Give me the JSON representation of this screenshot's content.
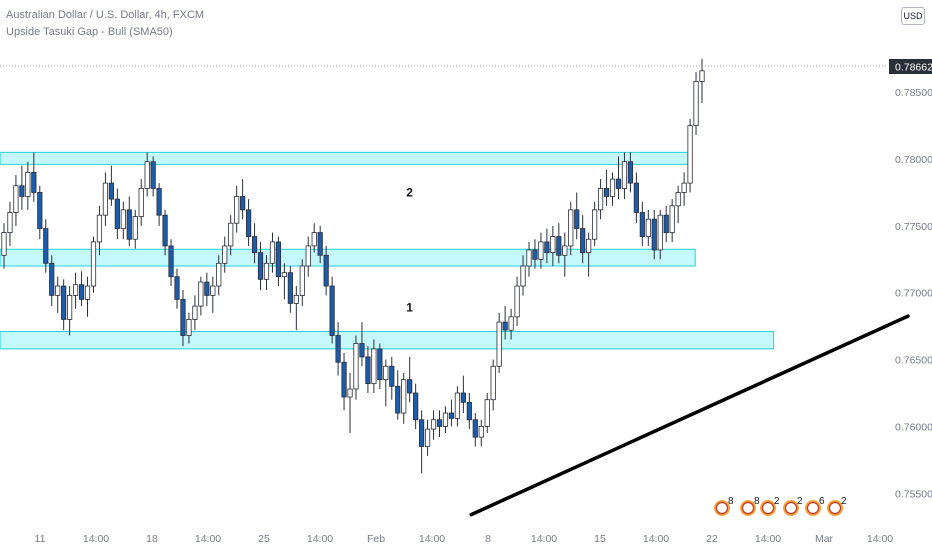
{
  "header": {
    "title": "Australian Dollar / U.S. Dollar, 4h, FXCM",
    "indicator": "Upside Tasuki Gap - Bull (SMA50)",
    "currency": "USD"
  },
  "colors": {
    "bull": "#ffffff",
    "bear": "#1e5ba8",
    "wick": "#2a2e39",
    "zone_fill": "#b2f5fa",
    "zone_stroke": "#22d3d8",
    "trendline": "#000000",
    "price_tag": "#2a2e39"
  },
  "chart_data": {
    "type": "candlestick",
    "symbol": "AUDUSD",
    "timeframe": "4h",
    "ylim": [
      0.753,
      0.7904
    ],
    "y_ticks": [
      "0.75500",
      "0.76000",
      "0.76500",
      "0.77000",
      "0.77500",
      "0.78000",
      "0.78500"
    ],
    "x_ticks": [
      "11",
      "14:00",
      "18",
      "14:00",
      "25",
      "14:00",
      "Feb",
      "14:00",
      "8",
      "14:00",
      "15",
      "14:00",
      "22",
      "14:00",
      "Mar",
      "14:00"
    ],
    "last_price": "0.78662",
    "zones": [
      {
        "high": 0.7805,
        "low": 0.7796,
        "end_tick": 11.6
      },
      {
        "high": 0.77325,
        "low": 0.772,
        "end_tick": 11.7
      },
      {
        "high": 0.7671,
        "low": 0.7658,
        "end_tick": 13.1
      }
    ],
    "trendline": {
      "from": [
        7.7,
        0.7534
      ],
      "to": [
        15.5,
        0.76825
      ]
    },
    "annotations": [
      {
        "text": "2",
        "x_tick": 6.6,
        "price": 0.7772
      },
      {
        "text": "1",
        "x_tick": 6.6,
        "price": 0.7686
      }
    ],
    "event_badges": [
      "8",
      "8",
      "2",
      "2",
      "6",
      "2"
    ],
    "candles": [
      [
        0.7728,
        0.7752,
        0.7718,
        0.7745
      ],
      [
        0.7745,
        0.7768,
        0.7735,
        0.776
      ],
      [
        0.776,
        0.7788,
        0.775,
        0.778
      ],
      [
        0.778,
        0.7795,
        0.7762,
        0.7772
      ],
      [
        0.7772,
        0.7798,
        0.7762,
        0.779
      ],
      [
        0.779,
        0.7805,
        0.7768,
        0.7775
      ],
      [
        0.7775,
        0.778,
        0.774,
        0.7748
      ],
      [
        0.7748,
        0.7755,
        0.7715,
        0.7722
      ],
      [
        0.7722,
        0.7728,
        0.769,
        0.7698
      ],
      [
        0.7698,
        0.7712,
        0.7685,
        0.7705
      ],
      [
        0.7705,
        0.771,
        0.7672,
        0.768
      ],
      [
        0.768,
        0.7705,
        0.7668,
        0.7698
      ],
      [
        0.7698,
        0.7715,
        0.7688,
        0.7706
      ],
      [
        0.7706,
        0.7716,
        0.769,
        0.7695
      ],
      [
        0.7695,
        0.7712,
        0.7682,
        0.7705
      ],
      [
        0.7705,
        0.7742,
        0.77,
        0.7738
      ],
      [
        0.7738,
        0.7765,
        0.7728,
        0.7758
      ],
      [
        0.7758,
        0.779,
        0.775,
        0.7782
      ],
      [
        0.7782,
        0.7795,
        0.7765,
        0.777
      ],
      [
        0.777,
        0.7778,
        0.774,
        0.7748
      ],
      [
        0.7748,
        0.7768,
        0.774,
        0.7762
      ],
      [
        0.7762,
        0.7772,
        0.7735,
        0.774
      ],
      [
        0.774,
        0.7762,
        0.7733,
        0.7757
      ],
      [
        0.7757,
        0.7785,
        0.775,
        0.7778
      ],
      [
        0.7778,
        0.7805,
        0.7772,
        0.7798
      ],
      [
        0.7798,
        0.7802,
        0.7772,
        0.7778
      ],
      [
        0.7778,
        0.7782,
        0.775,
        0.7758
      ],
      [
        0.7758,
        0.7762,
        0.7728,
        0.7735
      ],
      [
        0.7735,
        0.774,
        0.7705,
        0.7712
      ],
      [
        0.7712,
        0.7718,
        0.7688,
        0.7695
      ],
      [
        0.7695,
        0.7702,
        0.766,
        0.7668
      ],
      [
        0.7668,
        0.7685,
        0.7662,
        0.768
      ],
      [
        0.768,
        0.7698,
        0.7672,
        0.769
      ],
      [
        0.769,
        0.7712,
        0.7683,
        0.7708
      ],
      [
        0.7708,
        0.7715,
        0.769,
        0.7698
      ],
      [
        0.7698,
        0.7712,
        0.7685,
        0.7705
      ],
      [
        0.7705,
        0.7728,
        0.7698,
        0.7722
      ],
      [
        0.7722,
        0.7742,
        0.7715,
        0.7735
      ],
      [
        0.7735,
        0.7758,
        0.7728,
        0.7752
      ],
      [
        0.7752,
        0.778,
        0.7745,
        0.7772
      ],
      [
        0.7772,
        0.7785,
        0.7755,
        0.7762
      ],
      [
        0.7762,
        0.777,
        0.7735,
        0.7742
      ],
      [
        0.7742,
        0.7752,
        0.7722,
        0.773
      ],
      [
        0.773,
        0.7738,
        0.7702,
        0.771
      ],
      [
        0.771,
        0.7728,
        0.7702,
        0.7722
      ],
      [
        0.7722,
        0.7745,
        0.7715,
        0.7738
      ],
      [
        0.7738,
        0.7742,
        0.7705,
        0.7712
      ],
      [
        0.7712,
        0.7722,
        0.7695,
        0.7715
      ],
      [
        0.7715,
        0.772,
        0.7685,
        0.7692
      ],
      [
        0.7692,
        0.7705,
        0.7672,
        0.7698
      ],
      [
        0.7698,
        0.7725,
        0.769,
        0.772
      ],
      [
        0.772,
        0.7742,
        0.7712,
        0.7735
      ],
      [
        0.7735,
        0.7752,
        0.773,
        0.7745
      ],
      [
        0.7745,
        0.775,
        0.7722,
        0.7728
      ],
      [
        0.7728,
        0.7735,
        0.7698,
        0.7705
      ],
      [
        0.7705,
        0.7712,
        0.7662,
        0.7668
      ],
      [
        0.7668,
        0.7678,
        0.7638,
        0.7648
      ],
      [
        0.7648,
        0.7655,
        0.7612,
        0.7622
      ],
      [
        0.7622,
        0.764,
        0.7595,
        0.7628
      ],
      [
        0.7628,
        0.7668,
        0.762,
        0.7662
      ],
      [
        0.7662,
        0.7678,
        0.7645,
        0.7652
      ],
      [
        0.7652,
        0.766,
        0.7625,
        0.7632
      ],
      [
        0.7632,
        0.7665,
        0.7625,
        0.7658
      ],
      [
        0.7658,
        0.7662,
        0.7628,
        0.7635
      ],
      [
        0.7635,
        0.765,
        0.7615,
        0.7645
      ],
      [
        0.7645,
        0.7652,
        0.762,
        0.763
      ],
      [
        0.763,
        0.7642,
        0.7605,
        0.761
      ],
      [
        0.761,
        0.764,
        0.7602,
        0.7635
      ],
      [
        0.7635,
        0.7652,
        0.7618,
        0.7625
      ],
      [
        0.7625,
        0.7632,
        0.7598,
        0.7605
      ],
      [
        0.7605,
        0.7612,
        0.7565,
        0.7585
      ],
      [
        0.7585,
        0.7605,
        0.7578,
        0.7598
      ],
      [
        0.7598,
        0.7612,
        0.759,
        0.7605
      ],
      [
        0.7605,
        0.7612,
        0.7592,
        0.76
      ],
      [
        0.76,
        0.7615,
        0.7595,
        0.761
      ],
      [
        0.761,
        0.762,
        0.76,
        0.7606
      ],
      [
        0.7606,
        0.763,
        0.76,
        0.7625
      ],
      [
        0.7625,
        0.7638,
        0.761,
        0.7618
      ],
      [
        0.7618,
        0.7625,
        0.7598,
        0.7605
      ],
      [
        0.7605,
        0.761,
        0.7585,
        0.7592
      ],
      [
        0.7592,
        0.7605,
        0.7585,
        0.76
      ],
      [
        0.76,
        0.7625,
        0.7595,
        0.762
      ],
      [
        0.762,
        0.765,
        0.7612,
        0.7645
      ],
      [
        0.7645,
        0.7685,
        0.764,
        0.7678
      ],
      [
        0.7678,
        0.769,
        0.7665,
        0.7672
      ],
      [
        0.7672,
        0.7688,
        0.7665,
        0.7682
      ],
      [
        0.7682,
        0.7712,
        0.7675,
        0.7705
      ],
      [
        0.7705,
        0.7728,
        0.7698,
        0.772
      ],
      [
        0.772,
        0.7738,
        0.7712,
        0.7732
      ],
      [
        0.7732,
        0.774,
        0.7718,
        0.7725
      ],
      [
        0.7725,
        0.7745,
        0.7718,
        0.7738
      ],
      [
        0.7738,
        0.7748,
        0.7722,
        0.773
      ],
      [
        0.773,
        0.775,
        0.772,
        0.7742
      ],
      [
        0.7742,
        0.7752,
        0.7722,
        0.7728
      ],
      [
        0.7728,
        0.7745,
        0.7712,
        0.7735
      ],
      [
        0.7735,
        0.7768,
        0.7728,
        0.7762
      ],
      [
        0.7762,
        0.7775,
        0.774,
        0.7748
      ],
      [
        0.7748,
        0.7758,
        0.7722,
        0.773
      ],
      [
        0.773,
        0.7745,
        0.7712,
        0.774
      ],
      [
        0.774,
        0.7768,
        0.7735,
        0.7762
      ],
      [
        0.7762,
        0.7785,
        0.7755,
        0.7778
      ],
      [
        0.7778,
        0.7792,
        0.7765,
        0.7772
      ],
      [
        0.7772,
        0.779,
        0.7765,
        0.7785
      ],
      [
        0.7785,
        0.7802,
        0.777,
        0.7778
      ],
      [
        0.7778,
        0.7805,
        0.777,
        0.7798
      ],
      [
        0.7798,
        0.7805,
        0.7775,
        0.7782
      ],
      [
        0.7782,
        0.779,
        0.7752,
        0.776
      ],
      [
        0.776,
        0.7768,
        0.7735,
        0.7742
      ],
      [
        0.7742,
        0.7762,
        0.7735,
        0.7755
      ],
      [
        0.7755,
        0.7762,
        0.7725,
        0.7732
      ],
      [
        0.7732,
        0.7762,
        0.7725,
        0.7758
      ],
      [
        0.7758,
        0.7765,
        0.7738,
        0.7745
      ],
      [
        0.7745,
        0.777,
        0.7738,
        0.7765
      ],
      [
        0.7765,
        0.778,
        0.7752,
        0.7775
      ],
      [
        0.7775,
        0.779,
        0.7765,
        0.7782
      ],
      [
        0.7782,
        0.783,
        0.7775,
        0.7825
      ],
      [
        0.7825,
        0.7865,
        0.7818,
        0.7858
      ],
      [
        0.7858,
        0.7875,
        0.7842,
        0.7866
      ]
    ]
  }
}
